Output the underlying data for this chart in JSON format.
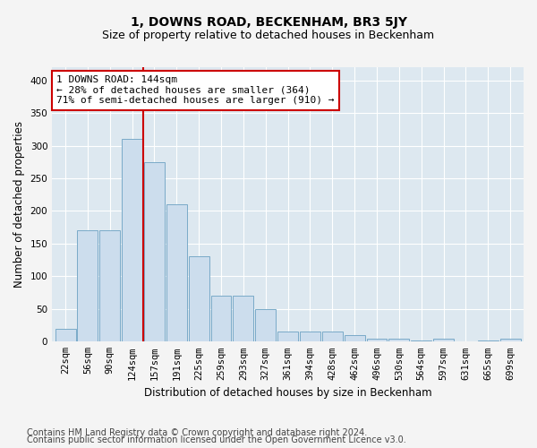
{
  "title": "1, DOWNS ROAD, BECKENHAM, BR3 5JY",
  "subtitle": "Size of property relative to detached houses in Beckenham",
  "xlabel": "Distribution of detached houses by size in Beckenham",
  "ylabel": "Number of detached properties",
  "bar_labels": [
    "22sqm",
    "56sqm",
    "90sqm",
    "124sqm",
    "157sqm",
    "191sqm",
    "225sqm",
    "259sqm",
    "293sqm",
    "327sqm",
    "361sqm",
    "394sqm",
    "428sqm",
    "462sqm",
    "496sqm",
    "530sqm",
    "564sqm",
    "597sqm",
    "631sqm",
    "665sqm",
    "699sqm"
  ],
  "bar_values": [
    20,
    170,
    170,
    310,
    275,
    210,
    130,
    70,
    70,
    50,
    15,
    15,
    15,
    10,
    5,
    5,
    2,
    5,
    0,
    2,
    5
  ],
  "bar_color": "#ccdded",
  "bar_edge_color": "#7aaac8",
  "vline_color": "#cc0000",
  "vline_pos": 3.5,
  "annotation_text": "1 DOWNS ROAD: 144sqm\n← 28% of detached houses are smaller (364)\n71% of semi-detached houses are larger (910) →",
  "annotation_box_facecolor": "#ffffff",
  "annotation_box_edgecolor": "#cc0000",
  "ylim": [
    0,
    420
  ],
  "yticks": [
    0,
    50,
    100,
    150,
    200,
    250,
    300,
    350,
    400
  ],
  "plot_bg_color": "#dde8f0",
  "fig_bg_color": "#f4f4f4",
  "grid_color": "#ffffff",
  "title_fontsize": 10,
  "subtitle_fontsize": 9,
  "axis_label_fontsize": 8.5,
  "tick_fontsize": 7.5,
  "annotation_fontsize": 8,
  "footer_fontsize": 7,
  "footer_line1": "Contains HM Land Registry data © Crown copyright and database right 2024.",
  "footer_line2": "Contains public sector information licensed under the Open Government Licence v3.0."
}
